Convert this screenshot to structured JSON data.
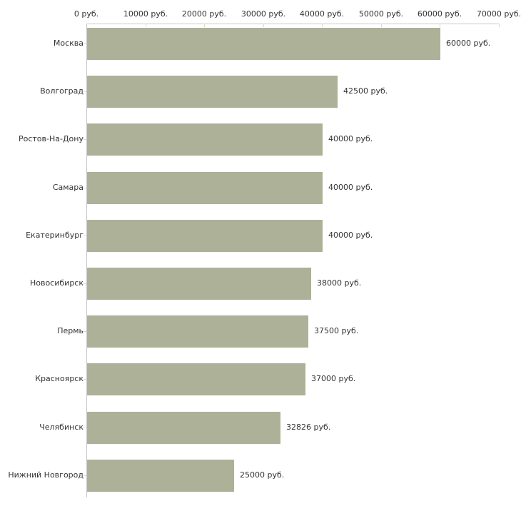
{
  "chart_data": {
    "type": "bar",
    "orientation": "horizontal",
    "title": "",
    "xlabel": "",
    "ylabel": "",
    "grid": false,
    "legend": null,
    "categories": [
      "Москва",
      "Волгоград",
      "Ростов-На-Дону",
      "Самара",
      "Екатеринбург",
      "Новосибирск",
      "Пермь",
      "Красноярск",
      "Челябинск",
      "Нижний Новгород"
    ],
    "values": [
      60000,
      42500,
      40000,
      40000,
      40000,
      38000,
      37500,
      37000,
      32826,
      25000
    ],
    "value_labels": [
      "60000 руб.",
      "42500 руб.",
      "40000 руб.",
      "40000 руб.",
      "40000 руб.",
      "38000 руб.",
      "37500 руб.",
      "37000 руб.",
      "32826 руб.",
      "25000 руб."
    ],
    "x_axis": {
      "position": "top",
      "range": [
        0,
        70000
      ],
      "ticks": [
        0,
        10000,
        20000,
        30000,
        40000,
        50000,
        60000,
        70000
      ],
      "tick_labels": [
        "0 руб.",
        "10000 руб.",
        "20000 руб.",
        "30000 руб.",
        "40000 руб.",
        "50000 руб.",
        "60000 руб.",
        "70000 руб."
      ],
      "unit": "руб."
    },
    "colors": {
      "bar": "#acb198",
      "axis_line": "#c9c9c9",
      "tick_mark": "#d9dcc2",
      "text": "#333333",
      "background": "#ffffff"
    }
  }
}
